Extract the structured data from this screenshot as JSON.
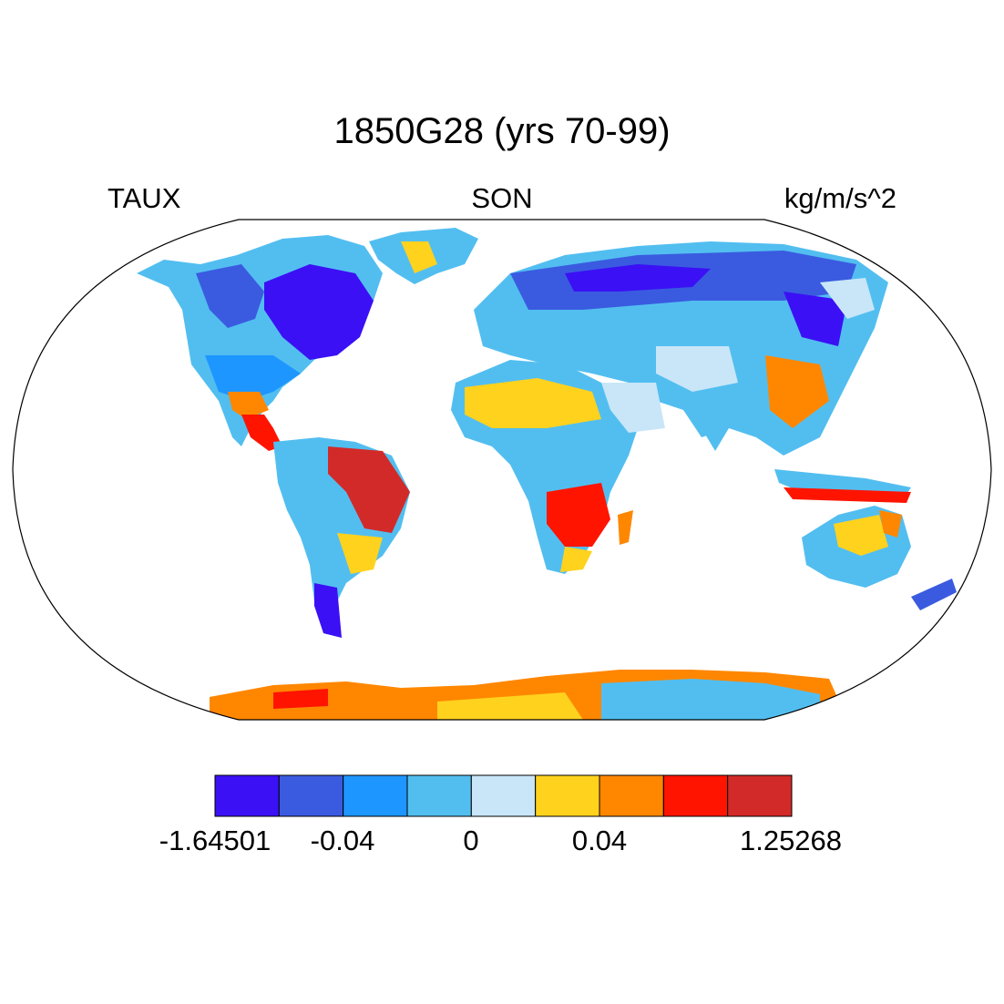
{
  "title": "1850G28 (yrs 70-99)",
  "left_label": "TAUX",
  "center_label": "SON",
  "right_label": "kg/m/s^2",
  "colorbar": {
    "colors": [
      "#3b10f5",
      "#3a5be0",
      "#1e96ff",
      "#52bef0",
      "#c8e6f8",
      "#ffd21e",
      "#ff8700",
      "#ff1400",
      "#d22a28"
    ],
    "tick_labels": [
      "-1.64501",
      "-0.04",
      "0",
      "0.04",
      "1.25268"
    ]
  },
  "palette": {
    "strong_neg": "#3b10f5",
    "neg": "#3a5be0",
    "mod_neg": "#1e96ff",
    "weak_neg": "#52bef0",
    "near_zero": "#c8e6f8",
    "weak_pos": "#ffd21e",
    "mod_pos": "#ff8700",
    "pos": "#ff1400",
    "strong_pos": "#d22a28"
  }
}
